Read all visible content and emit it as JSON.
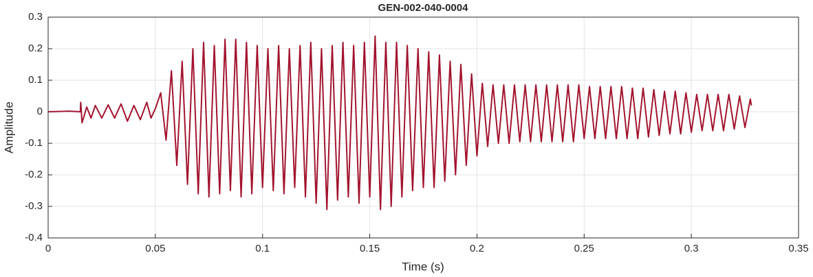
{
  "chart_data": {
    "type": "line",
    "title": "GEN-002-040-0004",
    "x_label": "Time (s)",
    "y_label": "Amplitude",
    "color": "#A2142F",
    "grid": true,
    "xlim": [
      0,
      0.35
    ],
    "xticks": [
      0,
      0.05,
      0.1,
      0.15,
      0.2,
      0.25,
      0.3,
      0.35
    ],
    "ylim": [
      -0.4,
      0.3
    ],
    "yticks": [
      -0.4,
      -0.3,
      -0.2,
      -0.1,
      0,
      0.1,
      0.2,
      0.3
    ],
    "x": [
      0,
      0.01,
      0.015,
      0.0152,
      0.0158,
      0.018,
      0.02,
      0.022,
      0.025,
      0.028,
      0.031,
      0.034,
      0.037,
      0.04,
      0.043,
      0.046,
      0.048,
      0.05,
      0.0525,
      0.055,
      0.0575,
      0.06,
      0.0625,
      0.065,
      0.0675,
      0.07,
      0.0725,
      0.075,
      0.0775,
      0.08,
      0.0825,
      0.085,
      0.0875,
      0.09,
      0.0925,
      0.095,
      0.0975,
      0.1,
      0.1025,
      0.105,
      0.1075,
      0.11,
      0.1125,
      0.115,
      0.1175,
      0.12,
      0.1225,
      0.125,
      0.1275,
      0.13,
      0.1325,
      0.135,
      0.1375,
      0.14,
      0.1425,
      0.145,
      0.1475,
      0.15,
      0.1525,
      0.155,
      0.1575,
      0.16,
      0.1625,
      0.165,
      0.1675,
      0.17,
      0.1725,
      0.175,
      0.1775,
      0.18,
      0.1825,
      0.185,
      0.1875,
      0.19,
      0.1925,
      0.195,
      0.1975,
      0.2,
      0.2025,
      0.205,
      0.2075,
      0.21,
      0.2125,
      0.215,
      0.2175,
      0.22,
      0.2225,
      0.225,
      0.2275,
      0.23,
      0.2325,
      0.235,
      0.2375,
      0.24,
      0.2425,
      0.245,
      0.2475,
      0.25,
      0.2525,
      0.255,
      0.2575,
      0.26,
      0.2625,
      0.265,
      0.2675,
      0.27,
      0.2725,
      0.275,
      0.2775,
      0.28,
      0.2825,
      0.285,
      0.2875,
      0.29,
      0.2925,
      0.295,
      0.2975,
      0.3,
      0.3025,
      0.305,
      0.3075,
      0.31,
      0.3125,
      0.315,
      0.3175,
      0.32,
      0.3225,
      0.325,
      0.3275,
      0.328
    ],
    "values": [
      0,
      0.002,
      0,
      0.03,
      -0.035,
      0.015,
      -0.02,
      0.02,
      -0.02,
      0.022,
      -0.02,
      0.025,
      -0.03,
      0.02,
      -0.025,
      0.03,
      -0.02,
      0.01,
      0.06,
      -0.09,
      0.13,
      -0.17,
      0.16,
      -0.23,
      0.2,
      -0.26,
      0.22,
      -0.27,
      0.21,
      -0.26,
      0.23,
      -0.25,
      0.23,
      -0.27,
      0.22,
      -0.26,
      0.21,
      -0.24,
      0.2,
      -0.25,
      0.21,
      -0.26,
      0.2,
      -0.24,
      0.21,
      -0.27,
      0.22,
      -0.29,
      0.2,
      -0.31,
      0.21,
      -0.28,
      0.22,
      -0.27,
      0.21,
      -0.29,
      0.22,
      -0.27,
      0.24,
      -0.31,
      0.22,
      -0.3,
      0.22,
      -0.27,
      0.21,
      -0.25,
      0.2,
      -0.24,
      0.19,
      -0.24,
      0.18,
      -0.22,
      0.16,
      -0.2,
      0.15,
      -0.17,
      0.12,
      -0.14,
      0.09,
      -0.11,
      0.085,
      -0.1,
      0.085,
      -0.1,
      0.085,
      -0.095,
      0.085,
      -0.095,
      0.085,
      -0.095,
      0.085,
      -0.095,
      0.085,
      -0.095,
      0.085,
      -0.095,
      0.085,
      -0.085,
      0.08,
      -0.085,
      0.08,
      -0.085,
      0.08,
      -0.085,
      0.08,
      -0.085,
      0.075,
      -0.085,
      0.075,
      -0.08,
      0.07,
      -0.075,
      0.065,
      -0.07,
      0.065,
      -0.07,
      0.06,
      -0.065,
      0.055,
      -0.06,
      0.055,
      -0.06,
      0.055,
      -0.06,
      0.055,
      -0.055,
      0.05,
      -0.05,
      0.04,
      0.02
    ]
  }
}
